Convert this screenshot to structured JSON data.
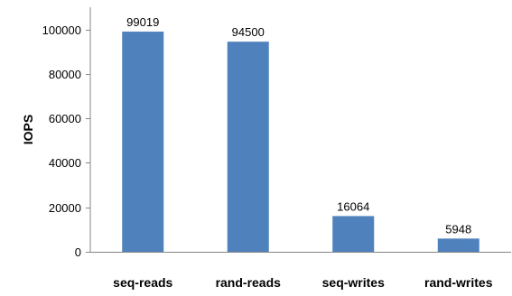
{
  "chart_data": {
    "type": "bar",
    "categories": [
      "seq-reads",
      "rand-reads",
      "seq-writes",
      "rand-writes"
    ],
    "values": [
      99019,
      94500,
      16064,
      5948
    ],
    "data_labels": [
      "99019",
      "94500",
      "16064",
      "5948"
    ],
    "title": "",
    "xlabel": "",
    "ylabel": "IOPS",
    "ylim": [
      0,
      110000
    ],
    "yticks": [
      0,
      20000,
      40000,
      60000,
      80000,
      100000
    ],
    "ytick_labels": [
      "0",
      "20000",
      "40000",
      "60000",
      "80000",
      "100000"
    ],
    "grid": false,
    "legend": "none",
    "bar_color": "#4F81BD",
    "axis_color": "#868686"
  }
}
